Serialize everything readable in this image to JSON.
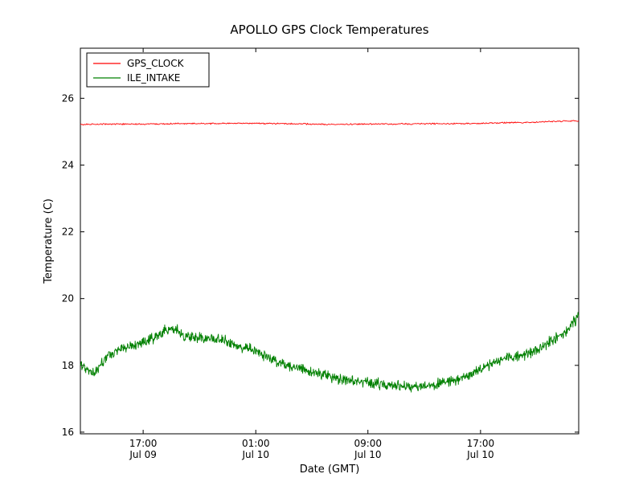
{
  "chart_data": {
    "type": "line",
    "title": "APOLLO GPS Clock Temperatures",
    "xlabel": "Date (GMT)",
    "ylabel": "Temperature (C)",
    "ylim": [
      15.95,
      27.5
    ],
    "y_ticks": [
      16,
      18,
      20,
      22,
      24,
      26
    ],
    "x_ticks": [
      {
        "pos": 0.126,
        "time": "17:00",
        "date": "Jul 09"
      },
      {
        "pos": 0.352,
        "time": "01:00",
        "date": "Jul 10"
      },
      {
        "pos": 0.577,
        "time": "09:00",
        "date": "Jul 10"
      },
      {
        "pos": 0.803,
        "time": "17:00",
        "date": "Jul 10"
      }
    ],
    "grid": false,
    "legend": {
      "position": "upper left",
      "entries": [
        "GPS_CLOCK",
        "ILE_INTAKE"
      ]
    },
    "series": [
      {
        "name": "GPS_CLOCK",
        "color": "#ff0000",
        "noise": 0.012,
        "samples": 700,
        "points": [
          [
            0,
            25.22
          ],
          [
            0.2,
            25.24
          ],
          [
            0.35,
            25.25
          ],
          [
            0.5,
            25.22
          ],
          [
            0.65,
            25.23
          ],
          [
            0.8,
            25.25
          ],
          [
            0.9,
            25.28
          ],
          [
            1,
            25.33
          ]
        ]
      },
      {
        "name": "ILE_INTAKE",
        "color": "#008000",
        "noise": 0.1,
        "samples": 1300,
        "points": [
          [
            0,
            18.0
          ],
          [
            0.015,
            17.85
          ],
          [
            0.03,
            17.8
          ],
          [
            0.05,
            18.2
          ],
          [
            0.08,
            18.5
          ],
          [
            0.11,
            18.6
          ],
          [
            0.14,
            18.75
          ],
          [
            0.17,
            19.05
          ],
          [
            0.19,
            19.1
          ],
          [
            0.21,
            18.9
          ],
          [
            0.24,
            18.8
          ],
          [
            0.28,
            18.8
          ],
          [
            0.31,
            18.6
          ],
          [
            0.35,
            18.45
          ],
          [
            0.4,
            18.05
          ],
          [
            0.44,
            17.9
          ],
          [
            0.48,
            17.75
          ],
          [
            0.52,
            17.6
          ],
          [
            0.56,
            17.5
          ],
          [
            0.6,
            17.45
          ],
          [
            0.63,
            17.4
          ],
          [
            0.67,
            17.35
          ],
          [
            0.7,
            17.4
          ],
          [
            0.73,
            17.5
          ],
          [
            0.76,
            17.6
          ],
          [
            0.8,
            17.85
          ],
          [
            0.83,
            18.1
          ],
          [
            0.86,
            18.25
          ],
          [
            0.89,
            18.3
          ],
          [
            0.92,
            18.5
          ],
          [
            0.95,
            18.8
          ],
          [
            0.975,
            19.0
          ],
          [
            1,
            19.5
          ]
        ]
      }
    ]
  }
}
